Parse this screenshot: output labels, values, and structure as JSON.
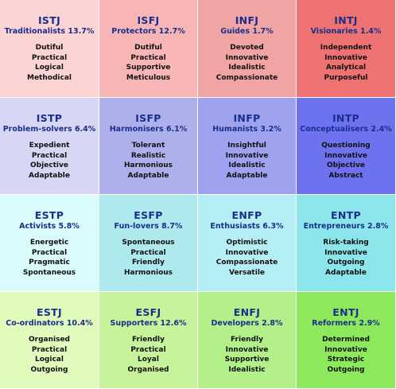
{
  "types": [
    {
      "code": "ISTJ",
      "group": "Traditionalists 13.7%",
      "traits": [
        "Dutiful",
        "Practical",
        "Logical",
        "Methodical"
      ],
      "color": "#fcd4d4"
    },
    {
      "code": "ISFJ",
      "group": "Protectors 12.7%",
      "traits": [
        "Dutiful",
        "Practical",
        "Supportive",
        "Meticulous"
      ],
      "color": "#f8b5b5"
    },
    {
      "code": "INFJ",
      "group": "Guides 1.7%",
      "traits": [
        "Devoted",
        "Innovative",
        "Idealistic",
        "Compassionate"
      ],
      "color": "#f0a4a4"
    },
    {
      "code": "INTJ",
      "group": "Visionaries 1.4%",
      "traits": [
        "Independent",
        "Innovative",
        "Analytical",
        "Purposeful"
      ],
      "color": "#ef7272"
    },
    {
      "code": "ISTP",
      "group": "Problem-solvers 6.4%",
      "traits": [
        "Expedient",
        "Practical",
        "Objective",
        "Adaptable"
      ],
      "color": "#d7d6f4"
    },
    {
      "code": "ISFP",
      "group": "Harmonisers 6.1%",
      "traits": [
        "Tolerant",
        "Realistic",
        "Harmonious",
        "Adaptable"
      ],
      "color": "#aeb0ec"
    },
    {
      "code": "INFP",
      "group": "Humanists 3.2%",
      "traits": [
        "Insightful",
        "Innovative",
        "Idealistic",
        "Adaptable"
      ],
      "color": "#9ea2ef"
    },
    {
      "code": "INTP",
      "group": "Conceptualisers 2.4%",
      "traits": [
        "Questioning",
        "Innovative",
        "Objective",
        "Abstract"
      ],
      "color": "#6e72ef"
    },
    {
      "code": "ESTP",
      "group": "Activists 5.8%",
      "traits": [
        "Energetic",
        "Practical",
        "Pragmatic",
        "Spontaneous"
      ],
      "color": "#d9fbfb"
    },
    {
      "code": "ESFP",
      "group": "Fun-lovers 8.7%",
      "traits": [
        "Spontaneous",
        "Practical",
        "Friendly",
        "Harmonious"
      ],
      "color": "#aee9ee"
    },
    {
      "code": "ENFP",
      "group": "Enthusiasts 6.3%",
      "traits": [
        "Optimistic",
        "Innovative",
        "Compassionate",
        "Versatile"
      ],
      "color": "#b5eef5"
    },
    {
      "code": "ENTP",
      "group": "Entrepreneurs 2.8%",
      "traits": [
        "Risk-taking",
        "Innovative",
        "Outgoing",
        "Adaptable"
      ],
      "color": "#8ce5ea"
    },
    {
      "code": "ESTJ",
      "group": "Co-ordinators 10.4%",
      "traits": [
        "Organised",
        "Practical",
        "Logical",
        "Outgoing"
      ],
      "color": "#e1fbbd"
    },
    {
      "code": "ESFJ",
      "group": "Supporters 12.6%",
      "traits": [
        "Friendly",
        "Practical",
        "Loyal",
        "Organised"
      ],
      "color": "#c7f49b"
    },
    {
      "code": "ENFJ",
      "group": "Developers 2.8%",
      "traits": [
        "Friendly",
        "Innovative",
        "Supportive",
        "Idealistic"
      ],
      "color": "#b3f08a"
    },
    {
      "code": "ENTJ",
      "group": "Reformers 2.9%",
      "traits": [
        "Determined",
        "Innovative",
        "Strategic",
        "Outgoing"
      ],
      "color": "#8ee85c"
    }
  ]
}
